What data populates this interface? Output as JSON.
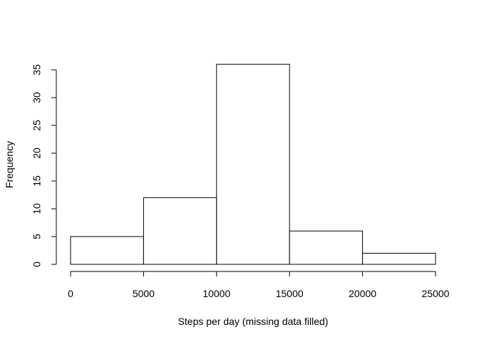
{
  "chart_data": {
    "type": "bar",
    "histogram": true,
    "title": "",
    "xlabel": "Steps per day (missing data filled)",
    "ylabel": "Frequency",
    "bins": [
      {
        "from": 0,
        "to": 5000,
        "count": 5
      },
      {
        "from": 5000,
        "to": 10000,
        "count": 12
      },
      {
        "from": 10000,
        "to": 15000,
        "count": 36
      },
      {
        "from": 15000,
        "to": 20000,
        "count": 6
      },
      {
        "from": 20000,
        "to": 25000,
        "count": 2
      }
    ],
    "xlim": [
      0,
      25000
    ],
    "ylim": [
      0,
      35
    ],
    "xticks": [
      0,
      5000,
      10000,
      15000,
      20000,
      25000
    ],
    "xtick_labels": [
      "0",
      "5000",
      "10000",
      "15000",
      "20000",
      "25000"
    ],
    "yticks": [
      0,
      5,
      10,
      15,
      20,
      25,
      30,
      35
    ],
    "ytick_labels": [
      "0",
      "5",
      "10",
      "15",
      "20",
      "25",
      "30",
      "35"
    ],
    "grid": false,
    "bar_fill": "#ffffff",
    "bar_stroke": "#000000"
  }
}
